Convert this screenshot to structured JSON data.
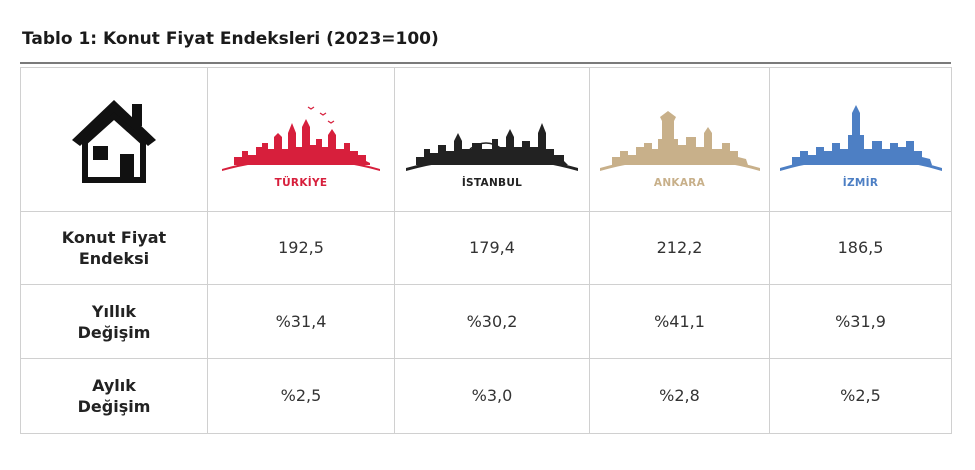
{
  "title": "Tablo 1: Konut Fiyat Endeksleri (2023=100)",
  "icons": {
    "house": "house-icon"
  },
  "cities": [
    {
      "name": "TÜRKİYE",
      "color": "#d71f3c",
      "icon": "turkiye-skyline-icon"
    },
    {
      "name": "İSTANBUL",
      "color": "#222222",
      "icon": "istanbul-skyline-icon"
    },
    {
      "name": "ANKARA",
      "color": "#c8b08a",
      "icon": "ankara-skyline-icon"
    },
    {
      "name": "İZMİR",
      "color": "#4d7fc4",
      "icon": "izmir-skyline-icon"
    }
  ],
  "rows": [
    {
      "label": "Konut Fiyat\nEndeksi",
      "values": [
        "192,5",
        "179,4",
        "212,2",
        "186,5"
      ]
    },
    {
      "label": "Yıllık\nDeğişim",
      "values": [
        "%31,4",
        "%30,2",
        "%41,1",
        "%31,9"
      ]
    },
    {
      "label": "Aylık\nDeğişim",
      "values": [
        "%2,5",
        "%3,0",
        "%2,8",
        "%2,5"
      ]
    }
  ]
}
